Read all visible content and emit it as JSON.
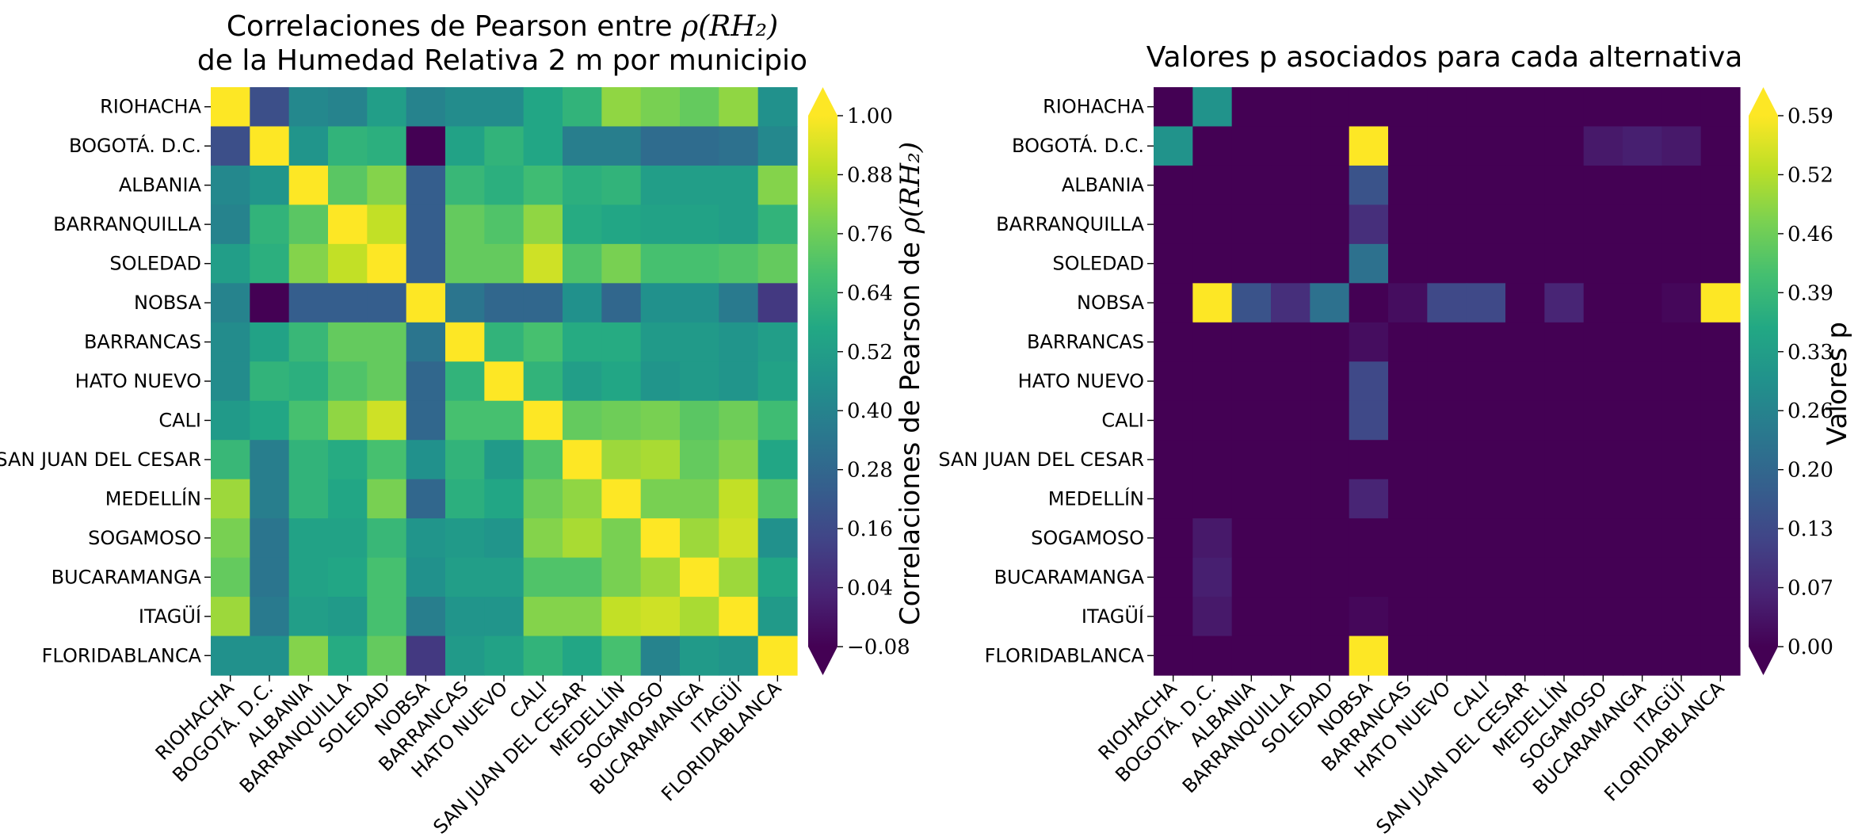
{
  "municipios": [
    "RIOHACHA",
    "BOGOTÁ. D.C.",
    "ALBANIA",
    "BARRANQUILLA",
    "SOLEDAD",
    "NOBSA",
    "BARRANCAS",
    "HATO NUEVO",
    "CALI",
    "SAN JUAN DEL CESAR",
    "MEDELLÍN",
    "SOGAMOSO",
    "BUCARAMANGA",
    "ITAGÜÍ",
    "FLORIDABLANCA"
  ],
  "chart_data": [
    {
      "type": "heatmap",
      "title_line1_text": "Correlaciones de Pearson entre ",
      "title_line1_math": "ρ(RH₂)",
      "title_line2": "de la Humedad Relativa 2 m por municipio",
      "colorbar_label_text": "Correlaciones de Pearson de ",
      "colorbar_label_math": "ρ(RH₂)",
      "colormap": "viridis",
      "vmin": -0.08,
      "vmax": 1.0,
      "colorbar_extend": "both",
      "colorbar_ticks": [
        "−0.08",
        "0.04",
        "0.16",
        "0.28",
        "0.40",
        "0.52",
        "0.64",
        "0.76",
        "0.88",
        "1.00"
      ],
      "values": [
        [
          1.0,
          0.18,
          0.42,
          0.4,
          0.52,
          0.4,
          0.44,
          0.44,
          0.56,
          0.62,
          0.82,
          0.78,
          0.74,
          0.82,
          0.46
        ],
        [
          0.18,
          1.0,
          0.48,
          0.62,
          0.6,
          -0.08,
          0.54,
          0.62,
          0.56,
          0.38,
          0.38,
          0.3,
          0.3,
          0.32,
          0.42
        ],
        [
          0.42,
          0.48,
          1.0,
          0.72,
          0.8,
          0.24,
          0.64,
          0.6,
          0.66,
          0.6,
          0.62,
          0.52,
          0.52,
          0.52,
          0.8
        ],
        [
          0.4,
          0.62,
          0.72,
          1.0,
          0.9,
          0.24,
          0.74,
          0.7,
          0.82,
          0.58,
          0.56,
          0.54,
          0.54,
          0.52,
          0.62
        ],
        [
          0.52,
          0.6,
          0.8,
          0.9,
          1.0,
          0.24,
          0.74,
          0.74,
          0.92,
          0.7,
          0.78,
          0.68,
          0.68,
          0.7,
          0.74
        ],
        [
          0.4,
          -0.08,
          0.24,
          0.24,
          0.24,
          1.0,
          0.34,
          0.28,
          0.28,
          0.46,
          0.28,
          0.46,
          0.46,
          0.36,
          0.1
        ],
        [
          0.44,
          0.54,
          0.64,
          0.74,
          0.74,
          0.34,
          1.0,
          0.62,
          0.68,
          0.58,
          0.58,
          0.5,
          0.5,
          0.48,
          0.52
        ],
        [
          0.44,
          0.62,
          0.6,
          0.7,
          0.74,
          0.28,
          0.62,
          1.0,
          0.62,
          0.52,
          0.56,
          0.48,
          0.5,
          0.48,
          0.54
        ],
        [
          0.5,
          0.56,
          0.68,
          0.82,
          0.92,
          0.28,
          0.68,
          0.68,
          1.0,
          0.74,
          0.76,
          0.78,
          0.72,
          0.76,
          0.66
        ],
        [
          0.64,
          0.38,
          0.62,
          0.58,
          0.68,
          0.46,
          0.62,
          0.5,
          0.7,
          1.0,
          0.84,
          0.86,
          0.74,
          0.8,
          0.56
        ],
        [
          0.84,
          0.38,
          0.62,
          0.56,
          0.78,
          0.28,
          0.6,
          0.56,
          0.76,
          0.82,
          1.0,
          0.78,
          0.78,
          0.9,
          0.7
        ],
        [
          0.78,
          0.34,
          0.54,
          0.54,
          0.64,
          0.48,
          0.5,
          0.48,
          0.8,
          0.86,
          0.78,
          1.0,
          0.84,
          0.92,
          0.46
        ],
        [
          0.74,
          0.34,
          0.54,
          0.56,
          0.68,
          0.46,
          0.52,
          0.52,
          0.7,
          0.7,
          0.78,
          0.84,
          1.0,
          0.84,
          0.56
        ],
        [
          0.84,
          0.36,
          0.52,
          0.5,
          0.68,
          0.38,
          0.48,
          0.48,
          0.8,
          0.8,
          0.9,
          0.92,
          0.86,
          1.0,
          0.5
        ],
        [
          0.46,
          0.46,
          0.8,
          0.58,
          0.74,
          0.1,
          0.5,
          0.54,
          0.62,
          0.56,
          0.68,
          0.4,
          0.5,
          0.48,
          1.0
        ]
      ]
    },
    {
      "type": "heatmap",
      "title": "Valores p asociados para cada alternativa",
      "colorbar_label": "Valores p",
      "colormap": "viridis",
      "vmin": 0.0,
      "vmax": 0.59,
      "colorbar_extend": "both",
      "colorbar_ticks": [
        "0.00",
        "0.07",
        "0.13",
        "0.20",
        "0.26",
        "0.33",
        "0.39",
        "0.46",
        "0.52",
        "0.59"
      ],
      "values": [
        [
          0.0,
          0.3,
          0.0,
          0.0,
          0.0,
          0.0,
          0.0,
          0.0,
          0.0,
          0.0,
          0.0,
          0.0,
          0.0,
          0.0,
          0.0
        ],
        [
          0.3,
          0.0,
          0.0,
          0.0,
          0.0,
          0.59,
          0.0,
          0.0,
          0.0,
          0.0,
          0.0,
          0.04,
          0.05,
          0.04,
          0.0
        ],
        [
          0.0,
          0.0,
          0.0,
          0.0,
          0.0,
          0.15,
          0.0,
          0.0,
          0.0,
          0.0,
          0.0,
          0.0,
          0.0,
          0.0,
          0.0
        ],
        [
          0.0,
          0.0,
          0.0,
          0.0,
          0.0,
          0.08,
          0.0,
          0.0,
          0.0,
          0.0,
          0.0,
          0.0,
          0.0,
          0.0,
          0.0
        ],
        [
          0.0,
          0.0,
          0.0,
          0.0,
          0.0,
          0.22,
          0.0,
          0.0,
          0.0,
          0.0,
          0.0,
          0.0,
          0.0,
          0.0,
          0.0
        ],
        [
          0.0,
          0.59,
          0.15,
          0.08,
          0.22,
          0.0,
          0.02,
          0.13,
          0.13,
          0.0,
          0.06,
          0.0,
          0.0,
          0.01,
          0.59
        ],
        [
          0.0,
          0.0,
          0.0,
          0.0,
          0.0,
          0.02,
          0.0,
          0.0,
          0.0,
          0.0,
          0.0,
          0.0,
          0.0,
          0.0,
          0.0
        ],
        [
          0.0,
          0.0,
          0.0,
          0.0,
          0.0,
          0.13,
          0.0,
          0.0,
          0.0,
          0.0,
          0.0,
          0.0,
          0.0,
          0.0,
          0.0
        ],
        [
          0.0,
          0.0,
          0.0,
          0.0,
          0.0,
          0.13,
          0.0,
          0.0,
          0.0,
          0.0,
          0.0,
          0.0,
          0.0,
          0.0,
          0.0
        ],
        [
          0.0,
          0.0,
          0.0,
          0.0,
          0.0,
          0.0,
          0.0,
          0.0,
          0.0,
          0.0,
          0.0,
          0.0,
          0.0,
          0.0,
          0.0
        ],
        [
          0.0,
          0.0,
          0.0,
          0.0,
          0.0,
          0.06,
          0.0,
          0.0,
          0.0,
          0.0,
          0.0,
          0.0,
          0.0,
          0.0,
          0.0
        ],
        [
          0.0,
          0.04,
          0.0,
          0.0,
          0.0,
          0.0,
          0.0,
          0.0,
          0.0,
          0.0,
          0.0,
          0.0,
          0.0,
          0.0,
          0.0
        ],
        [
          0.0,
          0.05,
          0.0,
          0.0,
          0.0,
          0.0,
          0.0,
          0.0,
          0.0,
          0.0,
          0.0,
          0.0,
          0.0,
          0.0,
          0.0
        ],
        [
          0.0,
          0.04,
          0.0,
          0.0,
          0.0,
          0.01,
          0.0,
          0.0,
          0.0,
          0.0,
          0.0,
          0.0,
          0.0,
          0.0,
          0.0
        ],
        [
          0.0,
          0.0,
          0.0,
          0.0,
          0.0,
          0.59,
          0.0,
          0.0,
          0.0,
          0.0,
          0.0,
          0.0,
          0.0,
          0.0,
          0.0
        ]
      ]
    }
  ]
}
